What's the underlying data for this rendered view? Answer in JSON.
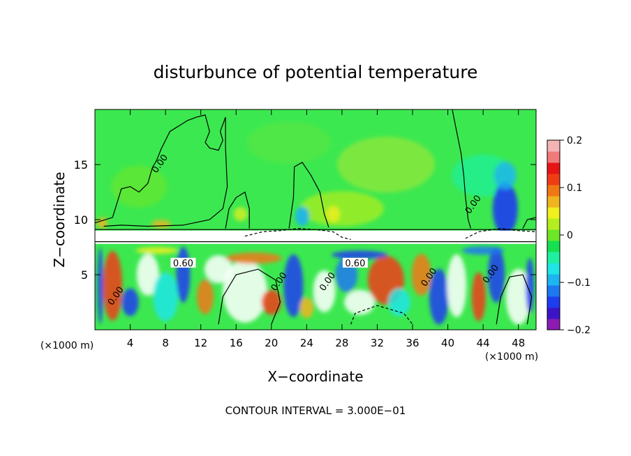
{
  "chart_data": {
    "type": "heatmap",
    "title": "disturbunce of potential temperature",
    "xlabel": "X−coordinate",
    "ylabel": "Z−coordinate",
    "x_unit_left": "(×1000 m)",
    "x_unit_right": "(×1000 m)",
    "footer": "CONTOUR INTERVAL = 3.000E−01",
    "xlim": [
      0,
      50
    ],
    "ylim": [
      0,
      20
    ],
    "x_ticks": [
      {
        "value": 4,
        "label": "4"
      },
      {
        "value": 8,
        "label": "8"
      },
      {
        "value": 12,
        "label": "12"
      },
      {
        "value": 16,
        "label": "16"
      },
      {
        "value": 20,
        "label": "20"
      },
      {
        "value": 24,
        "label": "24"
      },
      {
        "value": 28,
        "label": "28"
      },
      {
        "value": 32,
        "label": "32"
      },
      {
        "value": 36,
        "label": "36"
      },
      {
        "value": 40,
        "label": "40"
      },
      {
        "value": 44,
        "label": "44"
      },
      {
        "value": 48,
        "label": "48"
      }
    ],
    "y_ticks": [
      {
        "value": 5,
        "label": "5"
      },
      {
        "value": 10,
        "label": "10"
      },
      {
        "value": 15,
        "label": "15"
      }
    ],
    "colorbar": {
      "range": [
        -0.2,
        0.2
      ],
      "ticks": [
        {
          "value": 0.2,
          "label": "0.2"
        },
        {
          "value": 0.1,
          "label": "0.1"
        },
        {
          "value": 0,
          "label": "0"
        },
        {
          "value": -0.1,
          "label": "−0.1"
        },
        {
          "value": -0.2,
          "label": "−0.2"
        }
      ],
      "colors": [
        "#8c1bb4",
        "#3c14c8",
        "#1e3cf0",
        "#1e78f0",
        "#1eb4f0",
        "#1ee6e6",
        "#1ef0a0",
        "#14e050",
        "#6ee628",
        "#b4ee1e",
        "#f0f01e",
        "#f0b41e",
        "#f07814",
        "#f03c14",
        "#e61414",
        "#f07a7a",
        "#f5b4b4"
      ]
    },
    "contour_labels": [
      {
        "x": 10.0,
        "z": 5.9,
        "text": "0.60"
      },
      {
        "x": 29.5,
        "z": 5.9,
        "text": "0.60"
      },
      {
        "x": 7.5,
        "z": 15.0,
        "text": "0.00"
      },
      {
        "x": 43.0,
        "z": 11.3,
        "text": "0.00"
      },
      {
        "x": 21.0,
        "z": 4.3,
        "text": "0.00"
      },
      {
        "x": 2.5,
        "z": 3.0,
        "text": "0.00"
      },
      {
        "x": 26.5,
        "z": 4.3,
        "text": "0.00"
      },
      {
        "x": 38.0,
        "z": 4.7,
        "text": "0.00"
      },
      {
        "x": 45.0,
        "z": 5.0,
        "text": "0.00"
      }
    ]
  }
}
